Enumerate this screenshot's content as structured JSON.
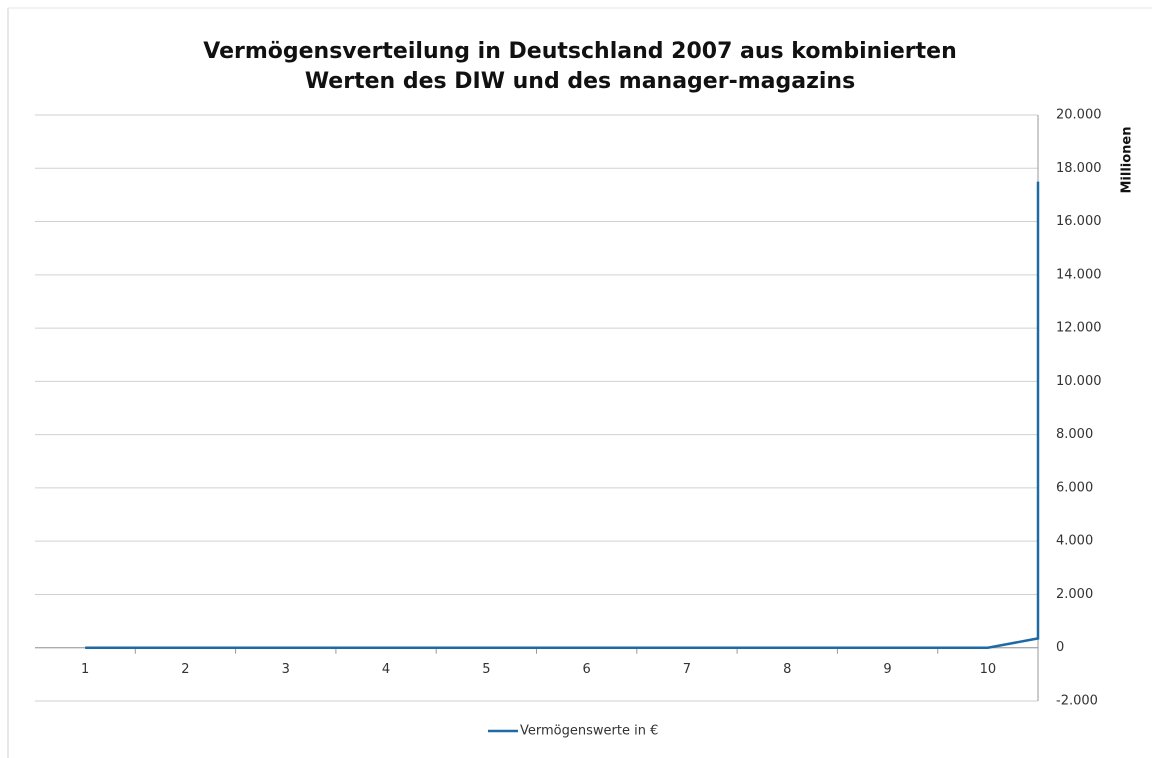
{
  "chart_data": {
    "type": "line",
    "title": [
      "Vermögensverteilung in Deutschland 2007 aus kombinierten",
      "Werten des DIW und des manager-magazins"
    ],
    "y_axis_label": "Millionen",
    "x": [
      1,
      2,
      3,
      4,
      5,
      6,
      7,
      8,
      9,
      10,
      10.5,
      10.5
    ],
    "xlim": [
      0.5,
      10.5
    ],
    "xticks": [
      1,
      2,
      3,
      4,
      5,
      6,
      7,
      8,
      9,
      10
    ],
    "series": [
      {
        "name": "Vermögenswerte in €",
        "color": "#1f6aa5",
        "values": [
          0,
          0,
          0,
          0,
          0,
          0,
          0,
          0,
          0,
          0,
          350,
          17500
        ]
      }
    ],
    "ylim": [
      -2000,
      20000
    ],
    "yticks": [
      {
        "value": -2000,
        "label": "-2.000"
      },
      0,
      {
        "value": 2000,
        "label": "2.000"
      },
      {
        "value": 4000,
        "label": "4.000"
      },
      {
        "value": 6000,
        "label": "6.000"
      },
      {
        "value": 8000,
        "label": "8.000"
      },
      {
        "value": 10000,
        "label": "10.000"
      },
      {
        "value": 12000,
        "label": "12.000"
      },
      {
        "value": 14000,
        "label": "14.000"
      },
      {
        "value": 16000,
        "label": "16.000"
      },
      {
        "value": 18000,
        "label": "18.000"
      },
      {
        "value": 20000,
        "label": "20.000"
      }
    ],
    "y_axis_side": "right",
    "grid": true,
    "legend": "bottom"
  }
}
